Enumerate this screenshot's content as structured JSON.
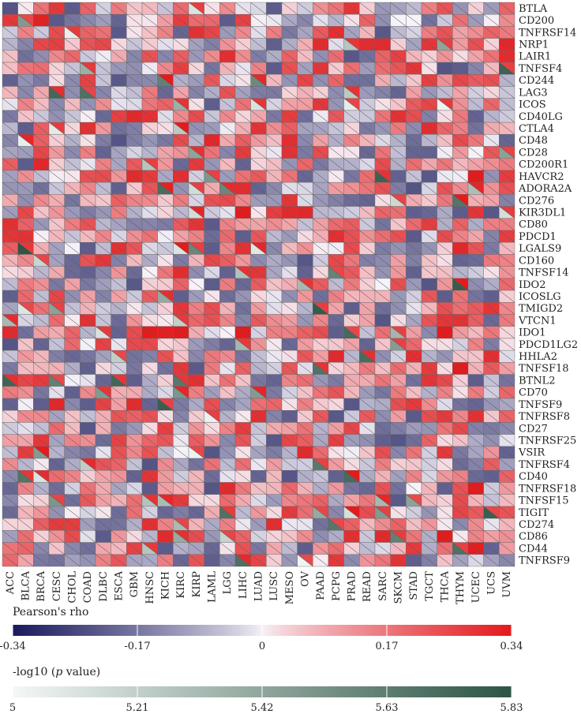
{
  "chart_data": {
    "type": "heatmap",
    "genes": [
      "BTLA",
      "CD200",
      "TNFRSF14",
      "NRP1",
      "LAIR1",
      "TNFSF4",
      "CD244",
      "LAG3",
      "ICOS",
      "CD40LG",
      "CTLA4",
      "CD48",
      "CD28",
      "CD200R1",
      "HAVCR2",
      "ADORA2A",
      "CD276",
      "KIR3DL1",
      "CD80",
      "PDCD1",
      "LGALS9",
      "CD160",
      "TNFSF14",
      "IDO2",
      "ICOSLG",
      "TMIGD2",
      "VTCN1",
      "IDO1",
      "PDCD1LG2",
      "HHLA2",
      "TNFSF18",
      "BTNL2",
      "CD70",
      "TNFSF9",
      "TNFRSF8",
      "CD27",
      "TNFRSF25",
      "VSIR",
      "TNFRSF4",
      "CD40",
      "TNFRSF18",
      "TNFSF15",
      "TIGIT",
      "CD274",
      "CD86",
      "CD44",
      "TNFRSF9"
    ],
    "cancers": [
      "ACC",
      "BLCA",
      "BRCA",
      "CESC",
      "CHOL",
      "COAD",
      "DLBC",
      "ESCA",
      "GBM",
      "HNSC",
      "KICH",
      "KIRC",
      "KIRP",
      "LAML",
      "LGG",
      "LIHC",
      "LUAD",
      "LUSC",
      "MESO",
      "OV",
      "PAAD",
      "PCPG",
      "PRAD",
      "READ",
      "SARC",
      "SKCM",
      "STAD",
      "TGCT",
      "THCA",
      "THYM",
      "UCEC",
      "UCS",
      "UVM"
    ],
    "cells": "upper triangle = Pearson's rho, lower triangle = -log10 (p value), asterisks = significance level",
    "legends": [
      {
        "title": "Pearson's rho",
        "ticks": [
          "-0.34",
          "-0.17",
          "0",
          "0.17",
          "0.34"
        ],
        "range": [
          -0.34,
          0.34
        ],
        "colors": [
          "#1a1a5e",
          "#f7f3fa",
          "#e41a1c"
        ]
      },
      {
        "title_prefix": "-log10 (",
        "title_italic": "p",
        "title_suffix": " value)",
        "ticks": [
          "5",
          "5.21",
          "5.42",
          "5.63",
          "5.83"
        ],
        "range": [
          5,
          5.83
        ],
        "colors": [
          "#f4f8f6",
          "#2c5444"
        ]
      }
    ]
  }
}
